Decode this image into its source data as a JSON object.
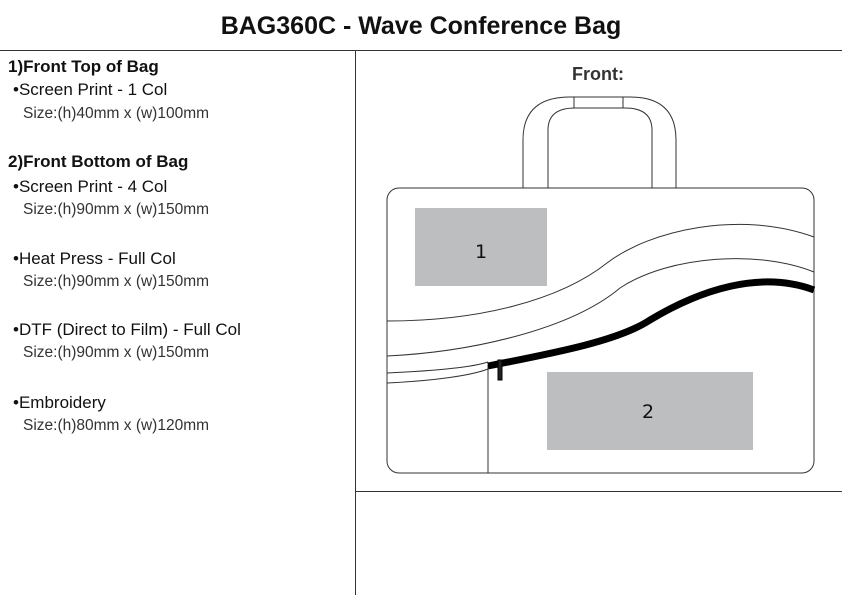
{
  "title": "BAG360C - Wave Conference Bag",
  "sections": [
    {
      "heading": "1)Front Top of Bag",
      "items": [
        {
          "method": "•Screen Print - 1 Col",
          "size": "Size:(h)40mm x (w)100mm"
        }
      ]
    },
    {
      "heading": "2)Front Bottom of Bag",
      "items": [
        {
          "method": "•Screen Print - 4 Col",
          "size": "Size:(h)90mm x (w)150mm"
        },
        {
          "method": "•Heat Press - Full Col",
          "size": "Size:(h)90mm x (w)150mm"
        },
        {
          "method": "•DTF (Direct to Film) - Full Col",
          "size": "Size:(h)90mm x (w)150mm"
        },
        {
          "method": "•Embroidery",
          "size": "Size:(h)80mm x (w)120mm"
        }
      ]
    }
  ],
  "drawing": {
    "view_label": "Front:",
    "area1_label": "1",
    "area2_label": "2",
    "print_area_color": "#bdbec0"
  }
}
